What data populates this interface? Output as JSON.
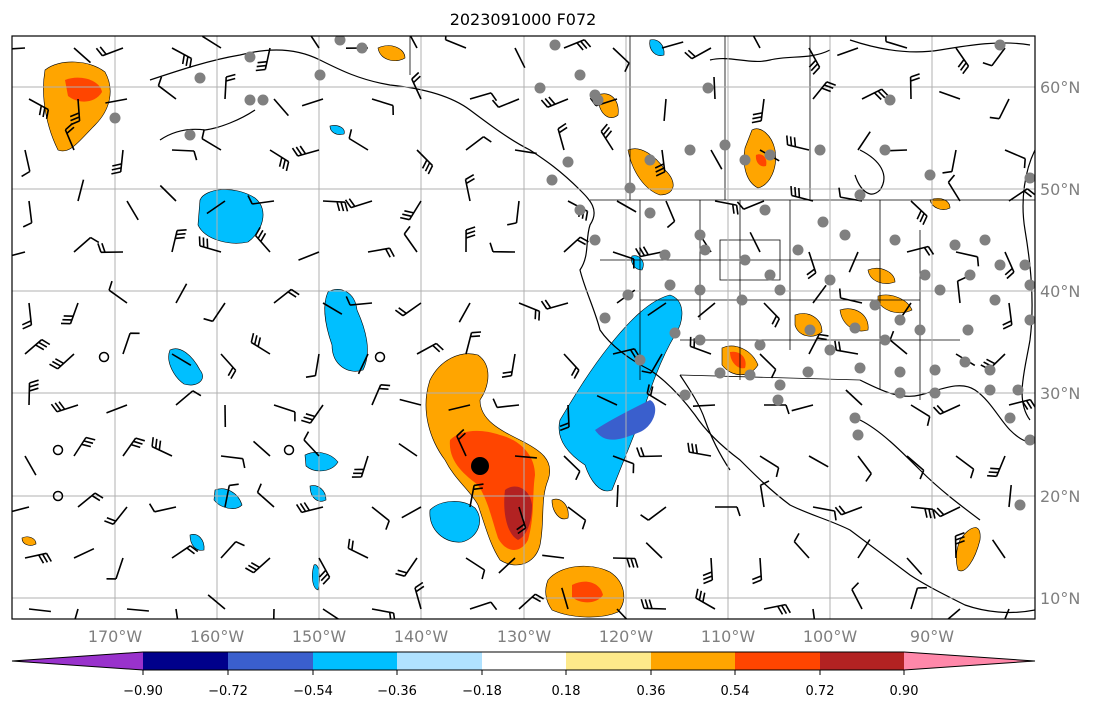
{
  "title": "2023091000 F072",
  "lon_labels": [
    "170°W",
    "160°W",
    "150°W",
    "140°W",
    "130°W",
    "120°W",
    "110°W",
    "100°W",
    "90°W"
  ],
  "lat_labels": [
    "60°N",
    "50°N",
    "40°N",
    "30°N",
    "20°N",
    "10°N"
  ],
  "colorbar": {
    "colors": [
      "#9932cc",
      "#00008b",
      "#3a5fcd",
      "#00bfff",
      "#b0e2ff",
      "#ffffff",
      "#fde98a",
      "#ffa500",
      "#ff4500",
      "#b22222",
      "#ff88aa"
    ],
    "ticks": [
      "−0.90",
      "−0.72",
      "−0.54",
      "−0.36",
      "−0.18",
      "0.18",
      "0.36",
      "0.54",
      "0.72",
      "0.90"
    ]
  },
  "contour_colors": {
    "neg_light": "#b0e2ff",
    "neg": "#00bfff",
    "neg_strong": "#3a5fcd",
    "pos_light": "#fde98a",
    "pos": "#ffa500",
    "pos_strong": "#ff4500",
    "pos_max": "#b22222"
  },
  "marker": "tropical-cyclone-center"
}
